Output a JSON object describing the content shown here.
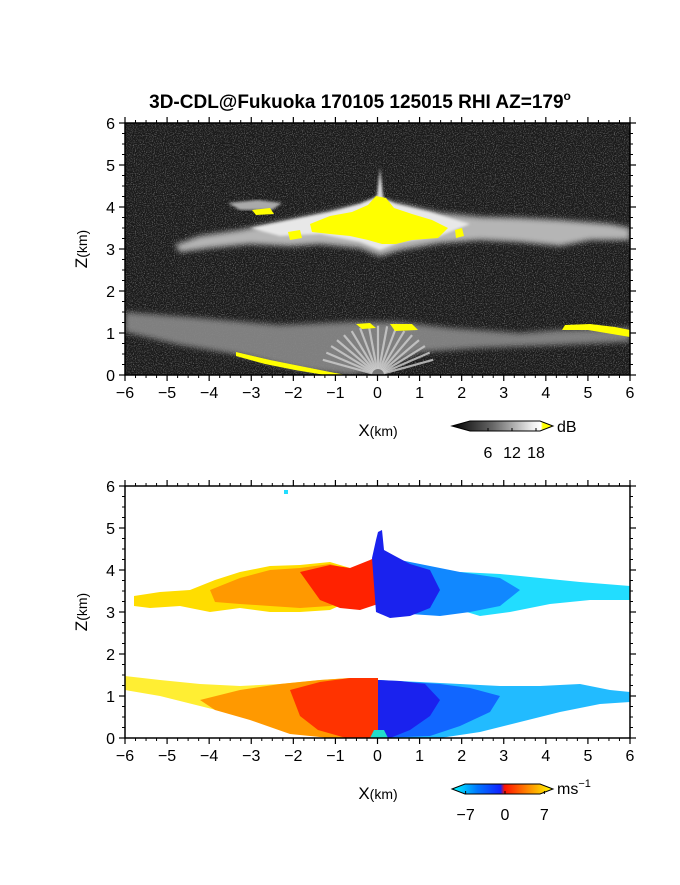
{
  "title": "3D-CDL@Fukuoka 170105 125015 RHI AZ=179",
  "title_superscript": "o",
  "chart_data": [
    {
      "type": "heatmap",
      "quantity": "reflectivity",
      "xlabel": "X",
      "xlabel_unit": "(km)",
      "ylabel": "Z",
      "ylabel_unit": "(km)",
      "xlim": [
        -6,
        6
      ],
      "ylim": [
        0,
        6
      ],
      "xticks": [
        "-6",
        "-5",
        "-4",
        "-3",
        "-2",
        "-1",
        "0",
        "1",
        "2",
        "3",
        "4",
        "5",
        "6"
      ],
      "yticks": [
        "0",
        "1",
        "2",
        "3",
        "4",
        "5",
        "6"
      ],
      "colorbar": {
        "unit": "dB",
        "ticks": [
          "6",
          "12",
          "18"
        ],
        "range": [
          0,
          20
        ],
        "colors": [
          "#000000",
          "#555555",
          "#aaaaaa",
          "#ffffff",
          "#ffff00"
        ]
      },
      "features": [
        {
          "name": "upper cloud layer",
          "x": [
            -6,
            6
          ],
          "z": [
            2.9,
            3.8
          ]
        },
        {
          "name": "lower boundary layer",
          "x": [
            -6,
            6
          ],
          "z": [
            0,
            1.4
          ]
        },
        {
          "name": "strong echo",
          "color": "#ffff00",
          "x": [
            -2.2,
            2.3
          ],
          "z": [
            3.2,
            4.1
          ]
        }
      ]
    },
    {
      "type": "heatmap",
      "quantity": "doppler velocity",
      "xlabel": "X",
      "xlabel_unit": "(km)",
      "ylabel": "Z",
      "ylabel_unit": "(km)",
      "xlim": [
        -6,
        6
      ],
      "ylim": [
        0,
        6
      ],
      "xticks": [
        "-6",
        "-5",
        "-4",
        "-3",
        "-2",
        "-1",
        "0",
        "1",
        "2",
        "3",
        "4",
        "5",
        "6"
      ],
      "yticks": [
        "0",
        "1",
        "2",
        "3",
        "4",
        "5",
        "6"
      ],
      "colorbar": {
        "unit": "ms",
        "unit_superscript": "−1",
        "ticks": [
          "−7",
          "0",
          "7"
        ],
        "range": [
          -8,
          8
        ],
        "colors": [
          "#00ffff",
          "#0044ff",
          "#ff0000",
          "#ff8800",
          "#ffff00"
        ]
      },
      "features": [
        {
          "name": "upper layer positive",
          "x": [
            -6,
            0
          ],
          "z": [
            2.9,
            4.3
          ]
        },
        {
          "name": "upper layer negative",
          "x": [
            0,
            6
          ],
          "z": [
            2.9,
            4.9
          ]
        },
        {
          "name": "lower layer positive",
          "x": [
            -6,
            0
          ],
          "z": [
            0,
            1.5
          ]
        },
        {
          "name": "lower layer negative",
          "x": [
            0,
            6
          ],
          "z": [
            0,
            1.4
          ]
        }
      ]
    }
  ]
}
